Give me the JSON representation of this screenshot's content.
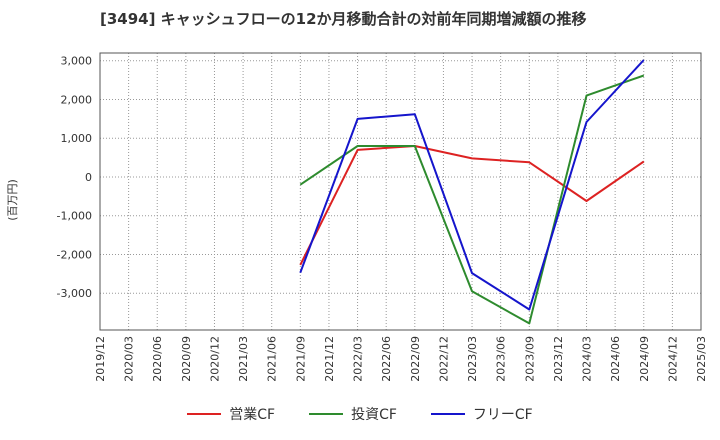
{
  "chart_data": {
    "type": "line",
    "title": "[3494]  キャッシュフローの12か月移動合計の対前年同期増減額の推移",
    "ylabel": "(百万円)",
    "xlabel": "",
    "ylim": [
      -3950,
      3200
    ],
    "yticks": [
      3000,
      2000,
      1000,
      0,
      -1000,
      -2000,
      -3000
    ],
    "ytick_labels": [
      "3,000",
      "2,000",
      "1,000",
      "0",
      "-1,000",
      "-2,000",
      "-3,000"
    ],
    "categories": [
      "2019/12",
      "2020/03",
      "2020/06",
      "2020/09",
      "2020/12",
      "2021/03",
      "2021/06",
      "2021/09",
      "2021/12",
      "2022/03",
      "2022/06",
      "2022/09",
      "2022/12",
      "2023/03",
      "2023/06",
      "2023/09",
      "2023/12",
      "2024/03",
      "2024/06",
      "2024/09",
      "2024/12",
      "2025/03"
    ],
    "grid": true,
    "legend_position": "bottom",
    "series": [
      {
        "name": "営業CF",
        "color": "#dd2222",
        "points": [
          [
            "2021/09",
            -2270
          ],
          [
            "2022/03",
            700
          ],
          [
            "2022/09",
            800
          ],
          [
            "2023/03",
            480
          ],
          [
            "2023/09",
            380
          ],
          [
            "2024/03",
            -620
          ],
          [
            "2024/09",
            400
          ]
        ]
      },
      {
        "name": "投資CF",
        "color": "#2e8b2e",
        "points": [
          [
            "2021/09",
            -200
          ],
          [
            "2022/03",
            800
          ],
          [
            "2022/09",
            800
          ],
          [
            "2023/03",
            -2950
          ],
          [
            "2023/09",
            -3780
          ],
          [
            "2024/03",
            2100
          ],
          [
            "2024/09",
            2620
          ]
        ]
      },
      {
        "name": "フリーCF",
        "color": "#1515cc",
        "points": [
          [
            "2021/09",
            -2470
          ],
          [
            "2022/03",
            1500
          ],
          [
            "2022/09",
            1620
          ],
          [
            "2023/03",
            -2480
          ],
          [
            "2023/09",
            -3420
          ],
          [
            "2024/03",
            1420
          ],
          [
            "2024/09",
            3020
          ]
        ]
      }
    ]
  }
}
